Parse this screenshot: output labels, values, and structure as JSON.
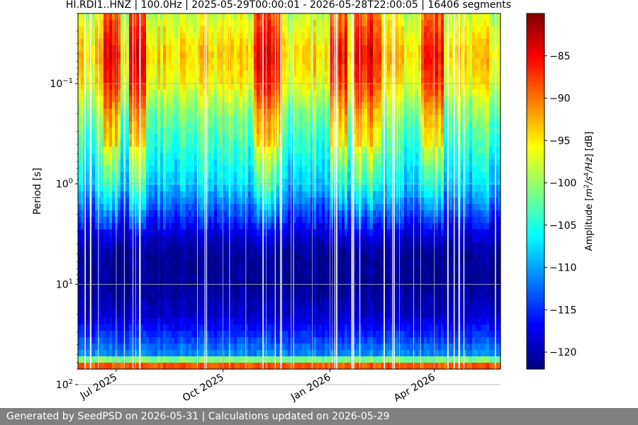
{
  "chart_data": {
    "type": "heatmap",
    "title": "HI.RDI1..HNZ | 100.0Hz | 2025-05-29T00:00:01 - 2026-05-28T22:00:05 | 16406 segments",
    "ylabel": "Period [s]",
    "yscale": "log",
    "yaxis_inverted": true,
    "ylim": [
      0.02,
      70
    ],
    "ytick_labels": [
      {
        "value": 0.1,
        "base": "10",
        "exp": "−1"
      },
      {
        "value": 1,
        "base": "10",
        "exp": "0"
      },
      {
        "value": 10,
        "base": "10",
        "exp": "1"
      },
      {
        "value": 100,
        "base": "10",
        "exp": "2"
      }
    ],
    "xlim": [
      "2025-05-29",
      "2026-05-28"
    ],
    "xtick_labels": [
      {
        "date": "2025-07-01",
        "label": "Jul 2025"
      },
      {
        "date": "2025-10-01",
        "label": "Oct 2025"
      },
      {
        "date": "2026-01-01",
        "label": "Jan 2026"
      },
      {
        "date": "2026-04-01",
        "label": "Apr 2026"
      }
    ],
    "grid": true,
    "colormap": "jet",
    "colorbar": {
      "label": "Amplitude [m²/s⁴/Hz] [dB]",
      "label_parts": {
        "pre": "Amplitude [",
        "m": "m",
        "sq": "2",
        "mid": "/s",
        "four": "4",
        "hz": "/Hz",
        "post": "] [dB]"
      },
      "range": [
        -122,
        -80
      ],
      "ticks": [
        -85,
        -90,
        -95,
        -100,
        -105,
        -110,
        -115,
        -120
      ],
      "tick_labels": [
        "−85",
        "−90",
        "−95",
        "−100",
        "−105",
        "−110",
        "−115",
        "−120"
      ]
    },
    "amplitude_profile_db": {
      "description_period_s": [
        0.02,
        0.05,
        0.1,
        0.2,
        0.5,
        1,
        2,
        3,
        5,
        10,
        20,
        50,
        60,
        70
      ],
      "typical_db": [
        -98,
        -94,
        -96,
        -101,
        -105,
        -108,
        -114,
        -118,
        -121,
        -121,
        -119,
        -111,
        -96,
        -82
      ]
    },
    "high_noise_periods": [
      {
        "start": "2025-06-21",
        "end": "2025-07-05"
      },
      {
        "start": "2025-07-11",
        "end": "2025-07-26"
      },
      {
        "start": "2025-10-28",
        "end": "2025-11-22"
      },
      {
        "start": "2026-01-01",
        "end": "2026-01-15"
      },
      {
        "start": "2026-01-20",
        "end": "2026-02-15"
      },
      {
        "start": "2026-03-20",
        "end": "2026-04-10"
      }
    ]
  },
  "footer": {
    "text": "Generated by SeedPSD on 2026-05-31 | Calculations updated on 2026-05-29"
  }
}
